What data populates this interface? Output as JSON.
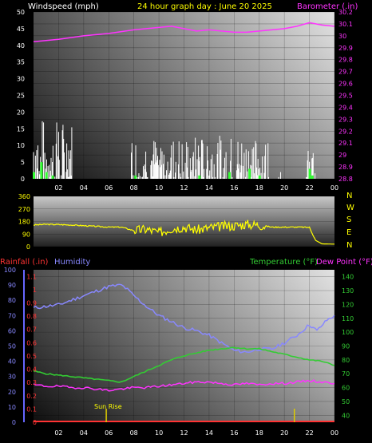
{
  "header": {
    "windspeed_label": "Windspeed (mph)",
    "title": "24 hour graph day : June 20 2025",
    "barometer_label": "Barometer (.in)"
  },
  "middle": {
    "compass": [
      "N",
      "W",
      "S",
      "E",
      "N"
    ]
  },
  "bottom_header": {
    "rainfall_label": "Rainfall (.in)",
    "humidity_label": "Humidity",
    "temperature_label": "Temperature (°F)",
    "dewpoint_label": "Dew Point (°F)"
  },
  "annotations": {
    "sunrise": "Sun Rise"
  },
  "colors": {
    "wind": "#ffffff",
    "barometer": "#ff33ff",
    "direction": "#ffff00",
    "rain": "#ff3333",
    "humidity": "#8888ff",
    "temperature": "#33cc33",
    "dewpoint": "#ff33ff",
    "gust": "#33ff33",
    "title": "#ffff00"
  },
  "chart_data": [
    {
      "type": "bar",
      "name": "wind",
      "x_ticks": [
        "02",
        "04",
        "06",
        "08",
        "10",
        "12",
        "14",
        "16",
        "18",
        "20",
        "22",
        "00"
      ],
      "y_ticks": [
        0,
        5,
        10,
        15,
        20,
        25,
        30,
        35,
        40,
        45,
        50
      ],
      "ylim": [
        0,
        50
      ],
      "wind_bursts": [
        {
          "from": 0.0,
          "to": 3.2,
          "max": 18
        },
        {
          "from": 7.8,
          "to": 18.8,
          "max": 13
        },
        {
          "from": 19.4,
          "to": 19.8,
          "max": 4
        },
        {
          "from": 21.7,
          "to": 22.5,
          "max": 9
        }
      ],
      "gust_points": [
        [
          0.0,
          2
        ],
        [
          0.6,
          5
        ],
        [
          1.0,
          2
        ],
        [
          1.5,
          1
        ],
        [
          8.1,
          1
        ],
        [
          13.2,
          1
        ],
        [
          15.6,
          2
        ],
        [
          17.2,
          3
        ],
        [
          18.0,
          1
        ],
        [
          22.0,
          3
        ],
        [
          22.2,
          1
        ]
      ],
      "barometer_ticks": [
        "30.2",
        "30.1",
        "30",
        "29.9",
        "29.8",
        "29.7",
        "29.6",
        "29.5",
        "29.4",
        "29.3",
        "29.2",
        "29.1",
        "29",
        "28.9",
        "28.8"
      ],
      "barometer_ylim": [
        28.8,
        30.2
      ],
      "barometer_series": [
        [
          0,
          29.95
        ],
        [
          2,
          29.97
        ],
        [
          4,
          30.0
        ],
        [
          6,
          30.02
        ],
        [
          8,
          30.05
        ],
        [
          10,
          30.07
        ],
        [
          11,
          30.08
        ],
        [
          12,
          30.06
        ],
        [
          13,
          30.04
        ],
        [
          14,
          30.05
        ],
        [
          15,
          30.04
        ],
        [
          16,
          30.03
        ],
        [
          17,
          30.03
        ],
        [
          18,
          30.04
        ],
        [
          19,
          30.05
        ],
        [
          20,
          30.06
        ],
        [
          21,
          30.08
        ],
        [
          22,
          30.11
        ],
        [
          23,
          30.09
        ],
        [
          24,
          30.08
        ]
      ]
    },
    {
      "type": "line",
      "name": "direction",
      "x_ticks": [],
      "y_ticks": [
        0,
        90,
        180,
        270,
        360
      ],
      "ylim": [
        0,
        360
      ],
      "direction_series": [
        [
          0,
          155
        ],
        [
          1,
          160
        ],
        [
          2,
          158
        ],
        [
          3,
          155
        ],
        [
          4,
          150
        ],
        [
          5,
          145
        ],
        [
          6,
          140
        ],
        [
          7,
          140
        ],
        [
          8,
          115
        ],
        [
          9,
          125
        ],
        [
          10,
          100
        ],
        [
          11,
          130
        ],
        [
          12,
          140
        ],
        [
          13,
          120
        ],
        [
          14,
          135
        ],
        [
          15,
          145
        ],
        [
          16,
          150
        ],
        [
          17,
          160
        ],
        [
          18,
          155
        ],
        [
          19,
          140
        ],
        [
          20,
          140
        ],
        [
          21,
          140
        ],
        [
          22,
          138
        ],
        [
          22.5,
          45
        ],
        [
          23,
          20
        ],
        [
          24,
          18
        ]
      ]
    },
    {
      "type": "line",
      "name": "temp-humidity",
      "x_ticks": [
        "02",
        "04",
        "06",
        "08",
        "10",
        "12",
        "14",
        "16",
        "18",
        "20",
        "22",
        "00"
      ],
      "humidity_ticks": [
        0,
        10,
        20,
        30,
        40,
        50,
        60,
        70,
        80,
        90,
        100
      ],
      "humidity_ylim": [
        0,
        100
      ],
      "rain_ticks": [
        "0",
        "0.1",
        "0.2",
        "0.3",
        "0.4",
        "0.5",
        "0.6",
        "0.7",
        "0.8",
        "0.9",
        "1",
        "1.1"
      ],
      "rain_ylim": [
        0,
        1.15
      ],
      "temp_ticks": [
        40,
        50,
        60,
        70,
        80,
        90,
        100,
        110,
        120,
        130,
        140
      ],
      "temp_ylim": [
        35,
        145
      ],
      "humidity_series": [
        [
          0,
          75
        ],
        [
          1,
          76
        ],
        [
          2,
          77
        ],
        [
          3,
          80
        ],
        [
          4,
          83
        ],
        [
          5,
          86
        ],
        [
          6,
          89
        ],
        [
          7,
          90
        ],
        [
          7.5,
          87
        ],
        [
          8,
          83
        ],
        [
          9,
          76
        ],
        [
          10,
          70
        ],
        [
          11,
          66
        ],
        [
          12,
          62
        ],
        [
          13,
          60
        ],
        [
          14,
          57
        ],
        [
          15,
          52
        ],
        [
          16,
          47
        ],
        [
          17,
          46
        ],
        [
          18,
          48
        ],
        [
          19,
          48
        ],
        [
          20,
          52
        ],
        [
          21,
          57
        ],
        [
          22,
          64
        ],
        [
          22.6,
          60
        ],
        [
          23.4,
          67
        ],
        [
          24,
          70
        ]
      ],
      "temperature_series": [
        [
          0,
          72
        ],
        [
          1,
          70
        ],
        [
          2,
          69
        ],
        [
          3,
          68
        ],
        [
          4,
          67
        ],
        [
          5,
          66
        ],
        [
          6,
          65
        ],
        [
          7,
          64
        ],
        [
          8,
          68
        ],
        [
          9,
          72
        ],
        [
          10,
          76
        ],
        [
          11,
          80
        ],
        [
          12,
          83
        ],
        [
          13,
          85
        ],
        [
          14,
          87
        ],
        [
          15,
          88
        ],
        [
          16,
          89
        ],
        [
          17,
          88
        ],
        [
          18,
          88
        ],
        [
          19,
          86
        ],
        [
          20,
          84
        ],
        [
          21,
          82
        ],
        [
          22,
          80
        ],
        [
          23,
          79
        ],
        [
          24,
          76
        ]
      ],
      "dewpoint_series": [
        [
          0,
          62
        ],
        [
          1,
          61
        ],
        [
          2,
          61
        ],
        [
          3,
          60
        ],
        [
          4,
          60
        ],
        [
          5,
          59
        ],
        [
          6,
          58
        ],
        [
          7,
          59
        ],
        [
          8,
          60
        ],
        [
          9,
          60
        ],
        [
          10,
          61
        ],
        [
          11,
          62
        ],
        [
          12,
          63
        ],
        [
          13,
          64
        ],
        [
          14,
          64
        ],
        [
          15,
          63
        ],
        [
          16,
          62
        ],
        [
          17,
          63
        ],
        [
          18,
          62
        ],
        [
          19,
          63
        ],
        [
          20,
          63
        ],
        [
          21,
          64
        ],
        [
          22,
          65
        ],
        [
          23,
          64
        ],
        [
          24,
          63
        ]
      ],
      "rain_series": [
        [
          0,
          0
        ],
        [
          24,
          0
        ]
      ],
      "sun_markers": [
        5.8,
        20.8
      ]
    }
  ]
}
